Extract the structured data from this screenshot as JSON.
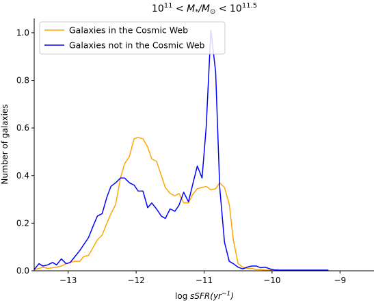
{
  "chart_data": {
    "type": "line",
    "title_parts": {
      "base1": "10",
      "exp1": "11",
      "middle": " < M",
      "sub": "*",
      "slash": "/M",
      "sun": "⊙",
      "lt": " < 10",
      "exp2": "11.5"
    },
    "xlabel_parts": {
      "prefix": "log",
      "var": " sSFR(yr",
      "exp": "−1",
      "suffix": ")"
    },
    "ylabel": "Number of galaxies",
    "xlim": [
      -13.5,
      -8.5
    ],
    "ylim": [
      0,
      1.06
    ],
    "xticks": [
      -13,
      -12,
      -11,
      -10,
      -9
    ],
    "xtick_labels": [
      "−13",
      "−12",
      "−11",
      "−10",
      "−9"
    ],
    "yticks": [
      0.0,
      0.2,
      0.4,
      0.6,
      0.8,
      1.0
    ],
    "ytick_labels": [
      "0.0",
      "0.2",
      "0.4",
      "0.6",
      "0.8",
      "1.0"
    ],
    "legend_position": "top-left",
    "series": [
      {
        "name": "Galaxies in the Cosmic Web",
        "color": "#ffa500",
        "x": [
          -13.5,
          -13.43,
          -13.37,
          -13.3,
          -13.23,
          -13.17,
          -13.1,
          -13.03,
          -12.97,
          -12.9,
          -12.83,
          -12.77,
          -12.7,
          -12.63,
          -12.57,
          -12.5,
          -12.43,
          -12.37,
          -12.3,
          -12.23,
          -12.17,
          -12.1,
          -12.03,
          -11.97,
          -11.9,
          -11.83,
          -11.77,
          -11.7,
          -11.63,
          -11.57,
          -11.5,
          -11.43,
          -11.37,
          -11.3,
          -11.23,
          -11.17,
          -11.1,
          -11.03,
          -10.97,
          -10.9,
          -10.83,
          -10.77,
          -10.7,
          -10.63,
          -10.57,
          -10.5,
          -10.43,
          -10.37,
          -10.3,
          -10.23,
          -10.17,
          -10.1,
          -10.03,
          -9.97,
          -9.9,
          -9.83,
          -9.77,
          -9.7,
          -9.63,
          -9.57,
          -9.5,
          -9.43,
          -9.37,
          -9.3,
          -9.23,
          -9.17
        ],
        "y": [
          0.005,
          0.01,
          0.015,
          0.01,
          0.013,
          0.015,
          0.02,
          0.03,
          0.035,
          0.04,
          0.04,
          0.06,
          0.065,
          0.1,
          0.13,
          0.15,
          0.2,
          0.24,
          0.28,
          0.39,
          0.45,
          0.48,
          0.555,
          0.56,
          0.555,
          0.52,
          0.47,
          0.46,
          0.4,
          0.35,
          0.325,
          0.315,
          0.325,
          0.285,
          0.285,
          0.32,
          0.345,
          0.35,
          0.355,
          0.34,
          0.345,
          0.37,
          0.35,
          0.28,
          0.13,
          0.03,
          0.015,
          0.01,
          0.01,
          0.005,
          0.005,
          0.003,
          0.003,
          0.003,
          0.002,
          0.002,
          0.002,
          0.002,
          0.002,
          0.002,
          0.002,
          0.002,
          0.002,
          0.002,
          0.002,
          0.002
        ]
      },
      {
        "name": "Galaxies not in the Cosmic Web",
        "color": "#0000ff",
        "x": [
          -13.5,
          -13.43,
          -13.37,
          -13.3,
          -13.23,
          -13.17,
          -13.1,
          -13.03,
          -12.97,
          -12.9,
          -12.83,
          -12.77,
          -12.7,
          -12.63,
          -12.57,
          -12.5,
          -12.43,
          -12.37,
          -12.3,
          -12.23,
          -12.17,
          -12.1,
          -12.03,
          -11.97,
          -11.9,
          -11.83,
          -11.77,
          -11.7,
          -11.63,
          -11.57,
          -11.5,
          -11.43,
          -11.37,
          -11.3,
          -11.23,
          -11.17,
          -11.1,
          -11.03,
          -10.97,
          -10.9,
          -10.83,
          -10.77,
          -10.7,
          -10.63,
          -10.57,
          -10.5,
          -10.43,
          -10.37,
          -10.3,
          -10.23,
          -10.17,
          -10.1,
          -10.03,
          -9.97,
          -9.9,
          -9.83,
          -9.77,
          -9.7,
          -9.63,
          -9.57,
          -9.5,
          -9.43,
          -9.37,
          -9.3,
          -9.23,
          -9.17
        ],
        "y": [
          0.005,
          0.03,
          0.02,
          0.025,
          0.035,
          0.025,
          0.05,
          0.03,
          0.035,
          0.06,
          0.085,
          0.11,
          0.14,
          0.19,
          0.23,
          0.24,
          0.31,
          0.355,
          0.37,
          0.39,
          0.39,
          0.37,
          0.36,
          0.335,
          0.335,
          0.265,
          0.285,
          0.26,
          0.23,
          0.22,
          0.26,
          0.25,
          0.275,
          0.33,
          0.29,
          0.36,
          0.44,
          0.39,
          0.6,
          1.01,
          0.835,
          0.35,
          0.12,
          0.04,
          0.03,
          0.015,
          0.008,
          0.015,
          0.02,
          0.02,
          0.013,
          0.015,
          0.008,
          0.004,
          0.003,
          0.003,
          0.003,
          0.003,
          0.003,
          0.003,
          0.003,
          0.003,
          0.003,
          0.003,
          0.003,
          0.003
        ]
      }
    ]
  }
}
